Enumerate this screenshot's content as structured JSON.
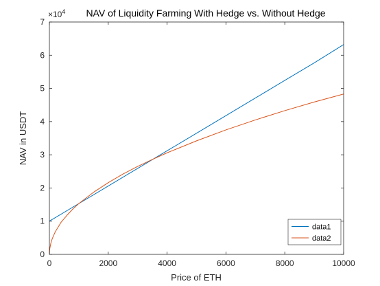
{
  "chart_data": {
    "type": "line",
    "title": "NAV of Liquidity Farming With Hedge vs. Without Hedge",
    "xlabel": "Price of ETH",
    "ylabel": "NAV in USDT",
    "xlim": [
      0,
      10000
    ],
    "ylim": [
      0,
      7
    ],
    "y_multiplier": {
      "base": "×10",
      "exponent": "4"
    },
    "x_ticks": [
      {
        "value": 0,
        "label": "0"
      },
      {
        "value": 2000,
        "label": "2000"
      },
      {
        "value": 4000,
        "label": "4000"
      },
      {
        "value": 6000,
        "label": "6000"
      },
      {
        "value": 8000,
        "label": "8000"
      },
      {
        "value": 10000,
        "label": "10000"
      }
    ],
    "y_ticks": [
      {
        "value": 0,
        "label": "0"
      },
      {
        "value": 1,
        "label": "1"
      },
      {
        "value": 2,
        "label": "2"
      },
      {
        "value": 3,
        "label": "3"
      },
      {
        "value": 4,
        "label": "4"
      },
      {
        "value": 5,
        "label": "5"
      },
      {
        "value": 6,
        "label": "6"
      },
      {
        "value": 7,
        "label": "7"
      }
    ],
    "grid": false,
    "legend_position": "bottom-right",
    "series": [
      {
        "name": "data1",
        "color": "#0072BD",
        "x": [
          0,
          1000,
          2000,
          3000,
          4000,
          5000,
          6000,
          7000,
          8000,
          9000,
          10000
        ],
        "y": [
          1.0,
          1.53,
          2.06,
          2.59,
          3.12,
          3.65,
          4.18,
          4.71,
          5.24,
          5.77,
          6.32
        ]
      },
      {
        "name": "data2",
        "color": "#D95319",
        "x": [
          0,
          10,
          50,
          100,
          200,
          400,
          600,
          800,
          1000,
          1500,
          2000,
          2500,
          3000,
          3500,
          4000,
          5000,
          6000,
          7000,
          8000,
          9000,
          10000
        ],
        "y": [
          0.0,
          0.15,
          0.34,
          0.48,
          0.68,
          0.97,
          1.18,
          1.37,
          1.53,
          1.87,
          2.16,
          2.42,
          2.65,
          2.86,
          3.06,
          3.42,
          3.75,
          4.05,
          4.33,
          4.59,
          4.83
        ]
      }
    ]
  }
}
